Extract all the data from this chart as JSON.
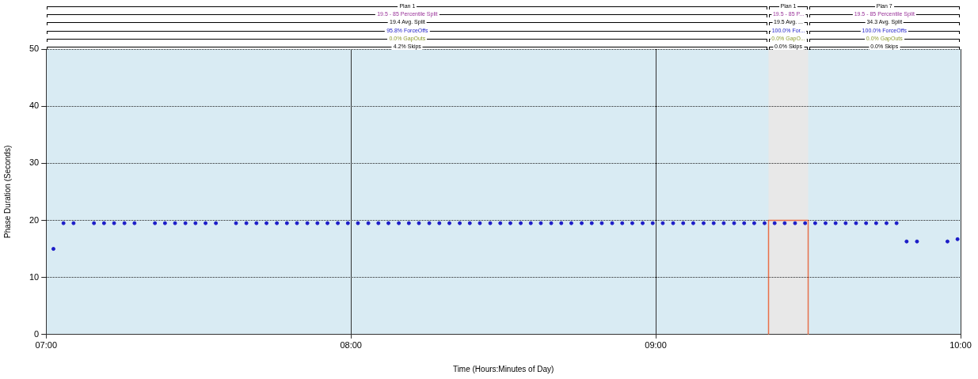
{
  "chart_data": {
    "type": "scatter",
    "xlabel": "Time (Hours:Minutes of Day)",
    "ylabel": "Phase Duration (Seconds)",
    "xlim": [
      7,
      10
    ],
    "xticks": [
      {
        "value": 7,
        "label": "07:00"
      },
      {
        "value": 8,
        "label": "08:00"
      },
      {
        "value": 9,
        "label": "09:00"
      },
      {
        "value": 10,
        "label": "10:00"
      }
    ],
    "ylim": [
      0,
      50
    ],
    "yticks": [
      0,
      10,
      20,
      30,
      40,
      50
    ],
    "grid": true,
    "legend": false,
    "marker": "circle",
    "series": [
      {
        "color": "#1c1cc8",
        "x": [
          7.024,
          7.057,
          7.09,
          7.157,
          7.19,
          7.223,
          7.257,
          7.29,
          7.357,
          7.39,
          7.423,
          7.457,
          7.49,
          7.523,
          7.557,
          7.623,
          7.657,
          7.69,
          7.723,
          7.757,
          7.79,
          7.823,
          7.857,
          7.89,
          7.923,
          7.957,
          7.99,
          8.023,
          8.057,
          8.09,
          8.123,
          8.157,
          8.19,
          8.223,
          8.257,
          8.29,
          8.323,
          8.357,
          8.39,
          8.423,
          8.457,
          8.49,
          8.523,
          8.557,
          8.59,
          8.623,
          8.657,
          8.69,
          8.723,
          8.757,
          8.79,
          8.823,
          8.857,
          8.89,
          8.923,
          8.957,
          8.99,
          9.023,
          9.057,
          9.09,
          9.123,
          9.157,
          9.19,
          9.223,
          9.257,
          9.29,
          9.323,
          9.357,
          9.39,
          9.423,
          9.457,
          9.49,
          9.523,
          9.557,
          9.59,
          9.623,
          9.657,
          9.69,
          9.723,
          9.757,
          9.79,
          9.823,
          9.857,
          9.957,
          9.99
        ],
        "values": [
          15,
          19.5,
          19.5,
          19.5,
          19.5,
          19.5,
          19.5,
          19.5,
          19.5,
          19.5,
          19.5,
          19.5,
          19.5,
          19.5,
          19.5,
          19.5,
          19.5,
          19.5,
          19.5,
          19.5,
          19.5,
          19.5,
          19.5,
          19.5,
          19.5,
          19.5,
          19.5,
          19.5,
          19.5,
          19.5,
          19.5,
          19.5,
          19.5,
          19.5,
          19.5,
          19.5,
          19.5,
          19.5,
          19.5,
          19.5,
          19.5,
          19.5,
          19.5,
          19.5,
          19.5,
          19.5,
          19.5,
          19.5,
          19.5,
          19.5,
          19.5,
          19.5,
          19.5,
          19.5,
          19.5,
          19.5,
          19.5,
          19.5,
          19.5,
          19.5,
          19.5,
          19.5,
          19.5,
          19.5,
          19.5,
          19.5,
          19.5,
          19.5,
          19.5,
          19.5,
          19.5,
          19.5,
          19.5,
          19.5,
          19.5,
          19.5,
          19.5,
          19.5,
          19.5,
          19.5,
          19.5,
          16.3,
          16.3,
          16.3,
          16.7
        ]
      },
      {
        "type": "line",
        "color": "#e8704a",
        "marker": "none",
        "x": [
          9.37,
          9.37,
          9.5,
          9.5
        ],
        "values": [
          0,
          20,
          20,
          0
        ]
      }
    ],
    "bands": [
      {
        "axis": "x",
        "from": 9.37,
        "to": 9.5,
        "color": "#e8e8e8"
      }
    ],
    "annotations": [
      "Plan 1",
      "19.5 - 85 Percentile Split",
      "19.4 Avg. Split",
      "95.8% ForceOffs",
      "0.0% GapOuts",
      "4.2% Skips",
      "Plan 1",
      "19.5 - 85 P...",
      "19.5 Avg. ...",
      "100.0% For...",
      "0.0% GapO...",
      "0.0% Skips",
      "Plan 7",
      "19.5 - 85 Percentile Split",
      "34.3 Avg. Split",
      "100.0% ForceOffs",
      "0.0% GapOuts",
      "0.0% Skips"
    ]
  }
}
